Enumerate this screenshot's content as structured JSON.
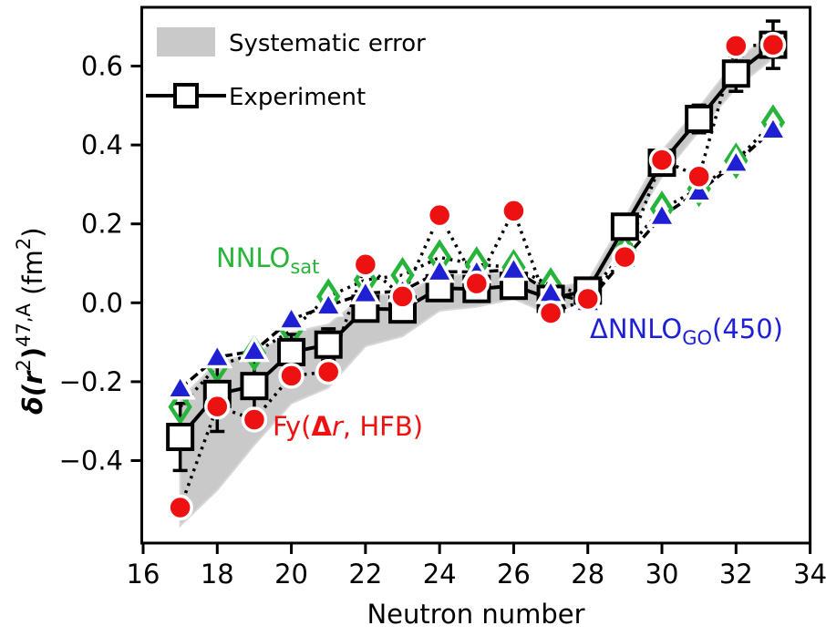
{
  "legend": {
    "systematic_label": "Systematic error",
    "experiment_label": "Experiment"
  },
  "axes": {
    "xlabel": "Neutron number",
    "ylabel_parts": {
      "main1": "δ(r",
      "sup1": "2",
      "main2": ")",
      "sup2": "47,A",
      "main3": " (fm",
      "sup3": "2",
      "main4": ")"
    },
    "x_ticks": [
      16,
      18,
      20,
      22,
      24,
      26,
      28,
      30,
      32,
      34
    ],
    "x_tick_labels": [
      "16",
      "18",
      "20",
      "22",
      "24",
      "26",
      "28",
      "30",
      "32",
      "34"
    ],
    "y_ticks": [
      0.6,
      0.4,
      0.2,
      0.0,
      -0.2,
      -0.4
    ],
    "y_tick_labels": [
      "0.6",
      "0.4",
      "0.2",
      "0.0",
      "−0.2",
      "−0.4"
    ],
    "x_range": [
      16,
      34
    ],
    "y_range": [
      -0.609,
      0.749
    ]
  },
  "series_labels": {
    "nnlo_sat": {
      "text": "NNLO",
      "sub": "sat",
      "color": "#27b43a"
    },
    "fy": {
      "pre": "Fy(",
      "delta": "Δ",
      "r": "r",
      "post": ", HFB)",
      "color": "#ee1111"
    },
    "dnnlo": {
      "pre": "ΔNNLO",
      "sub": "GO",
      "post": "(450)",
      "color": "#1f1fd3"
    }
  },
  "chart_data": {
    "type": "line",
    "title": "",
    "xlabel": "Neutron number",
    "ylabel": "δ(r2)47,A (fm2)",
    "x": [
      17,
      18,
      19,
      20,
      21,
      22,
      23,
      24,
      25,
      26,
      27,
      28,
      29,
      30,
      31,
      32,
      33
    ],
    "xlim": [
      16,
      34
    ],
    "ylim": [
      -0.609,
      0.749
    ],
    "grid": false,
    "legend_position": "upper-left",
    "series": [
      {
        "name": "Experiment",
        "marker": "open-square",
        "line": "solid",
        "color": "#000000",
        "values": [
          -0.34,
          -0.231,
          -0.211,
          -0.125,
          -0.106,
          -0.015,
          -0.017,
          0.037,
          0.035,
          0.043,
          0.01,
          0.031,
          0.193,
          0.355,
          0.466,
          0.581,
          0.654
        ],
        "errors": [
          0.085,
          0.095,
          0.065,
          0.045,
          0.04,
          0.025,
          0.025,
          0.02,
          0.02,
          0.02,
          0.02,
          0.02,
          0.025,
          0.03,
          0.035,
          0.045,
          0.06
        ]
      },
      {
        "name": "NNLO_sat",
        "marker": "open-diamond",
        "line": "dotted",
        "color": "#27b43a",
        "values": [
          -0.264,
          -0.16,
          -0.128,
          -0.07,
          0.016,
          0.058,
          0.07,
          0.115,
          0.097,
          0.09,
          0.044,
          0.02,
          0.131,
          0.238,
          0.289,
          0.36,
          0.457
        ]
      },
      {
        "name": "ΔNNLO_GO(450)",
        "marker": "filled-triangle",
        "line": "dashed",
        "color": "#1f1fd3",
        "values": [
          -0.217,
          -0.138,
          -0.122,
          -0.042,
          -0.007,
          0.024,
          0.03,
          0.079,
          0.078,
          0.084,
          0.025,
          0.002,
          0.112,
          0.22,
          0.282,
          0.355,
          0.439
        ]
      },
      {
        "name": "Fy(Δr, HFB)",
        "marker": "filled-circle",
        "line": "dotted",
        "color": "#ee1111",
        "values": [
          -0.519,
          -0.263,
          -0.296,
          -0.185,
          -0.175,
          0.097,
          0.016,
          0.222,
          0.049,
          0.233,
          -0.026,
          0.01,
          0.116,
          0.362,
          0.32,
          0.651,
          0.654
        ]
      }
    ],
    "band": {
      "name": "Systematic error",
      "color": "#c9c9c9",
      "upper": [
        -0.245,
        -0.15,
        -0.13,
        -0.075,
        -0.055,
        0.02,
        0.02,
        0.07,
        0.07,
        0.08,
        0.035,
        0.055,
        0.215,
        0.385,
        0.495,
        0.615,
        0.685
      ],
      "lower": [
        -0.565,
        -0.475,
        -0.36,
        -0.255,
        -0.215,
        -0.11,
        -0.085,
        -0.02,
        -0.01,
        0.01,
        -0.03,
        0.01,
        0.165,
        0.32,
        0.435,
        0.545,
        0.62
      ]
    },
    "band_color": "#c9c9c9"
  }
}
